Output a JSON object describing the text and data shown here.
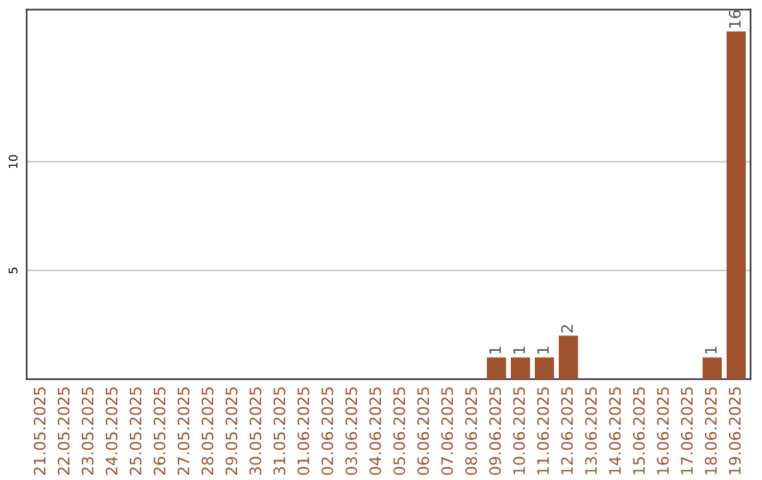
{
  "chart_data": {
    "type": "bar",
    "categories": [
      "21.05.2025",
      "22.05.2025",
      "23.05.2025",
      "24.05.2025",
      "25.05.2025",
      "26.05.2025",
      "27.05.2025",
      "28.05.2025",
      "29.05.2025",
      "30.05.2025",
      "31.05.2025",
      "01.06.2025",
      "02.06.2025",
      "03.06.2025",
      "04.06.2025",
      "05.06.2025",
      "06.06.2025",
      "07.06.2025",
      "08.06.2025",
      "09.06.2025",
      "10.06.2025",
      "11.06.2025",
      "12.06.2025",
      "13.06.2025",
      "14.06.2025",
      "15.06.2025",
      "16.06.2025",
      "17.06.2025",
      "18.06.2025",
      "19.06.2025"
    ],
    "values": [
      0,
      0,
      0,
      0,
      0,
      0,
      0,
      0,
      0,
      0,
      0,
      0,
      0,
      0,
      0,
      0,
      0,
      0,
      0,
      1,
      1,
      1,
      2,
      0,
      0,
      0,
      0,
      0,
      1,
      16
    ],
    "value_labels": [
      null,
      null,
      null,
      null,
      null,
      null,
      null,
      null,
      null,
      null,
      null,
      null,
      null,
      null,
      null,
      null,
      null,
      null,
      null,
      "1",
      "1",
      "1",
      "2",
      null,
      null,
      null,
      null,
      null,
      "1",
      "16"
    ],
    "color": "#a0522d",
    "ylim": [
      0,
      17
    ],
    "yticks": [
      5,
      10
    ],
    "grid": "y"
  }
}
